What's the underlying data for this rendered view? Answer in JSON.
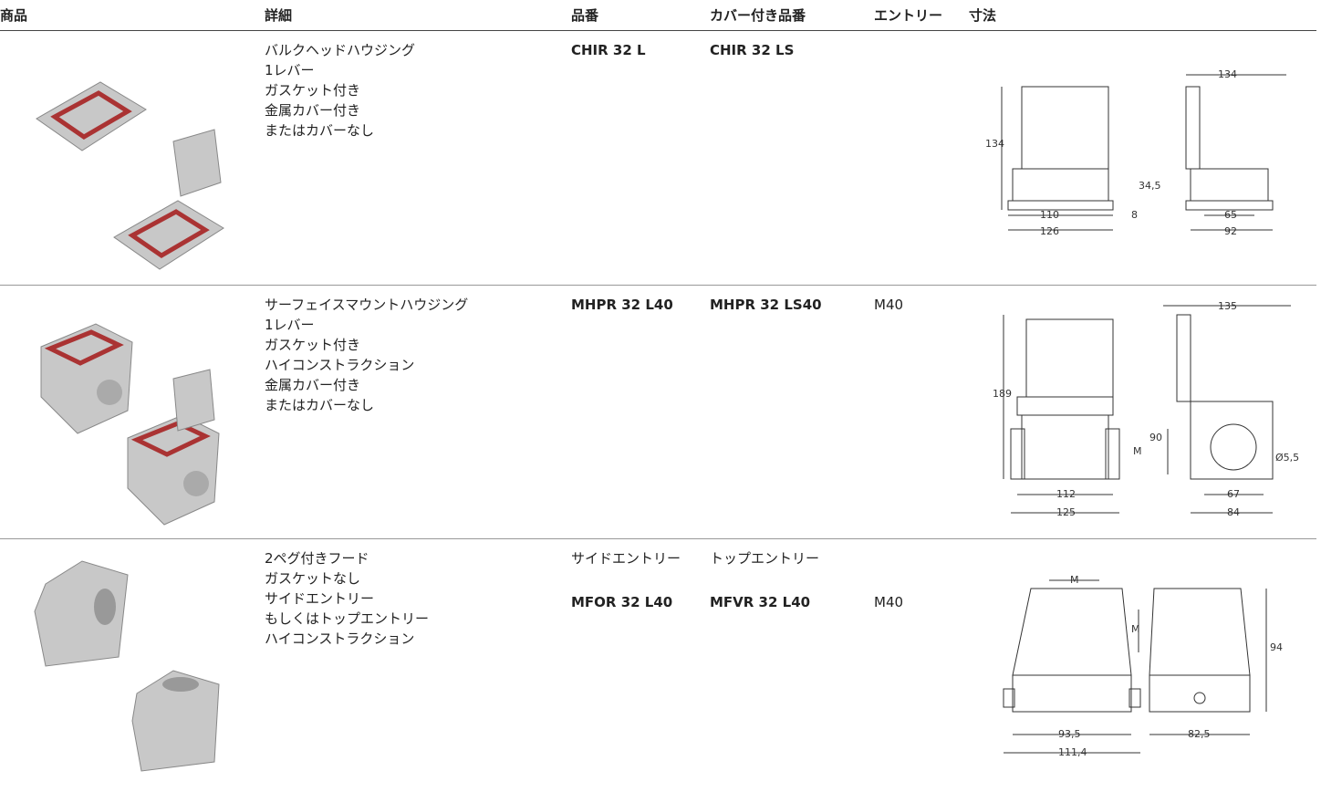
{
  "table": {
    "header": [
      "商品",
      "詳細",
      "品番",
      "カバー付き品番",
      "エントリー",
      "寸法"
    ],
    "rows": [
      {
        "details": [
          "バルクヘッドハウジング",
          "1レバー",
          "ガスケット付き",
          "金属カバー付き",
          "またはカバーなし"
        ],
        "part_number": "CHIR 32 L",
        "cover_part_number": "CHIR 32 LS",
        "entry": null,
        "dimensions": [
          "134",
          "134",
          "34,5",
          "8",
          "110",
          "126",
          "65",
          "92"
        ]
      },
      {
        "details": [
          "サーフェイスマウントハウジング",
          "1レバー",
          "ガスケット付き",
          "ハイコンストラクション",
          "金属カバー付き",
          "またはカバーなし"
        ],
        "part_number": "MHPR 32 L40",
        "cover_part_number": "MHPR 32 LS40",
        "entry": "M40",
        "dimensions": [
          "135",
          "189",
          "90",
          "M",
          "112",
          "125",
          "67",
          "84",
          "Ø5,5"
        ]
      },
      {
        "details": [
          "2ペグ付きフード",
          "ガスケットなし",
          "サイドエントリー",
          "もしくはトップエントリー",
          "ハイコンストラクション"
        ],
        "part_number_headers": [
          "サイドエントリー",
          "トップエントリー"
        ],
        "part_number": "MFOR 32 L40",
        "cover_part_number": "MFVR 32 L40",
        "entry": "M40",
        "dimensions": [
          "M",
          "M",
          "94",
          "93,5",
          "111,4",
          "82,5"
        ]
      }
    ]
  }
}
